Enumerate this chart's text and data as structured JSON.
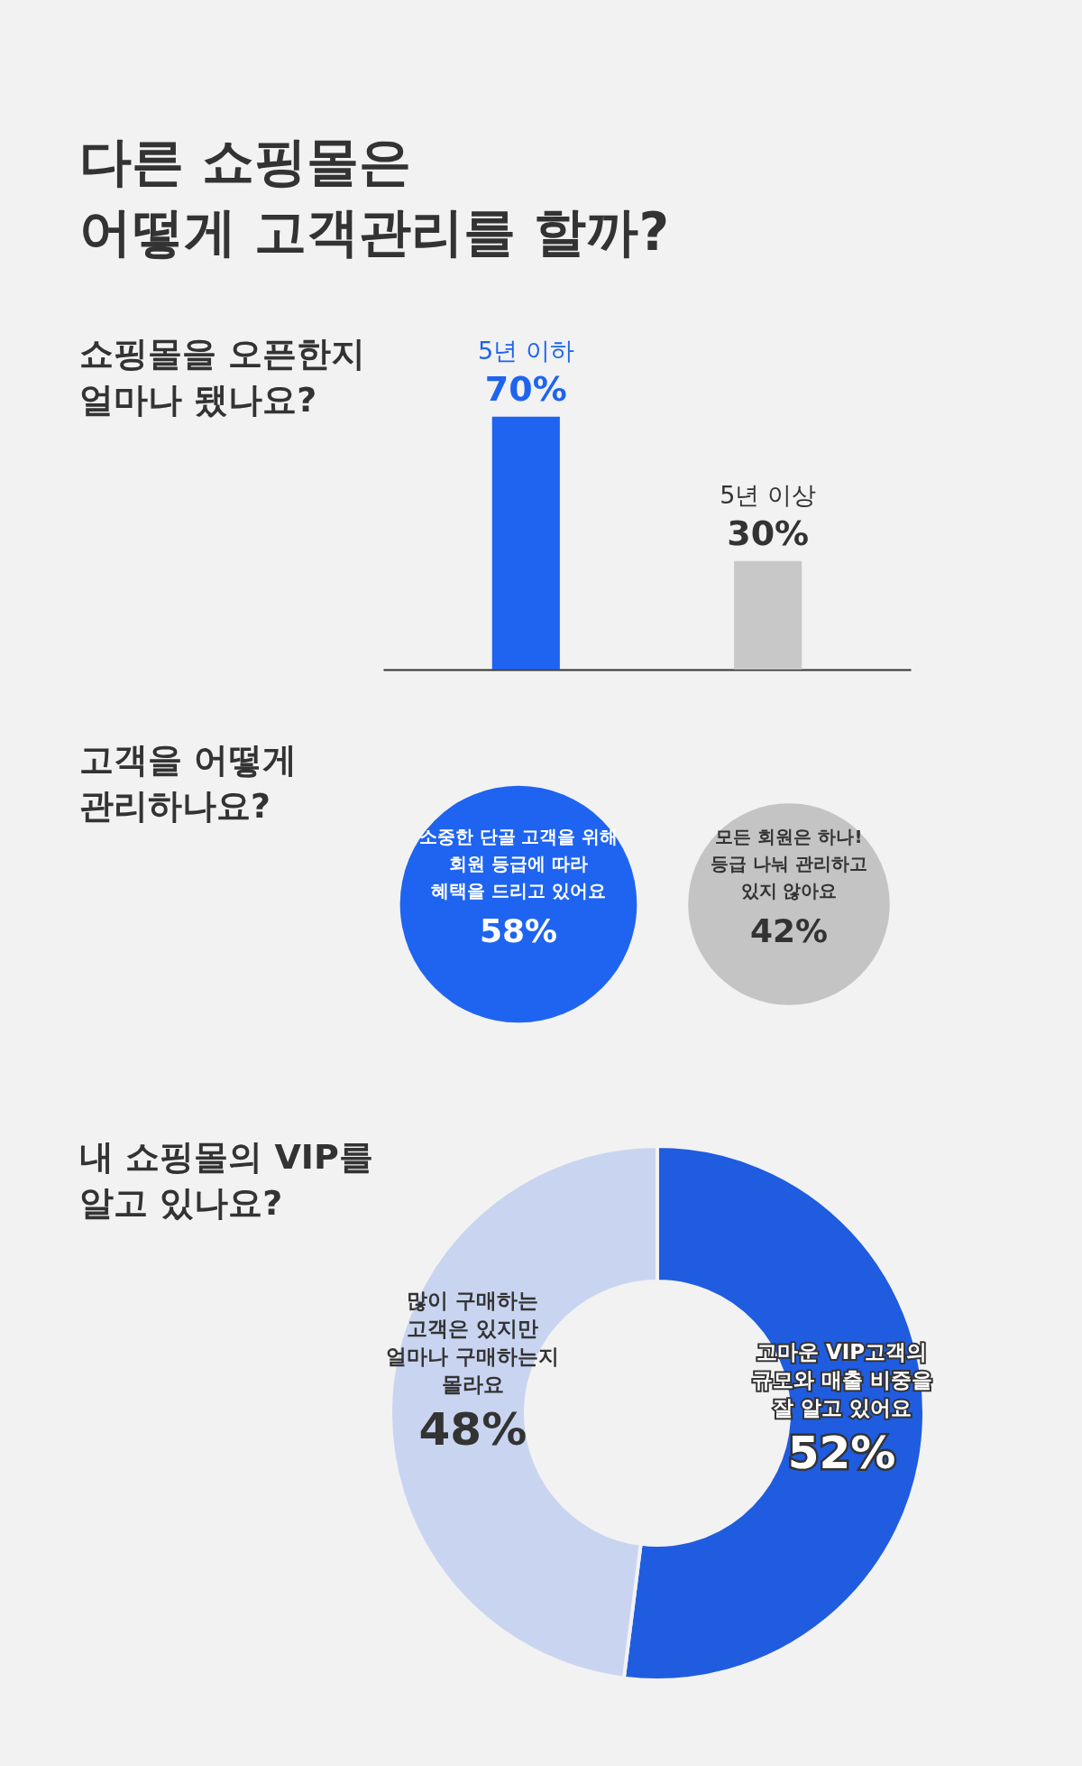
{
  "chart_data": [
    {
      "type": "other",
      "title": "다른 쇼핑몰은\n어떻게 고객관리를 할까?"
    },
    {
      "type": "bar",
      "title": "쇼핑몰을 오픈한지\n얼마나 됐나요?",
      "categories": [
        "5년 이하",
        "5년 이상"
      ],
      "values": [
        70,
        30
      ],
      "value_labels": [
        "70%",
        "30%"
      ],
      "colors": [
        "#1e64f0",
        "#c8c8c8"
      ]
    },
    {
      "type": "other",
      "title": "고객을 어떻게\n관리하나요?",
      "categories": [
        "소중한 단골 고객을 위해\n회원 등급에 따라\n혜택을 드리고 있어요",
        "모든 회원은 하나!\n등급 나눠 관리하고\n있지 않아요"
      ],
      "values": [
        58,
        42
      ],
      "value_labels": [
        "58%",
        "42%"
      ],
      "colors": [
        "#1e64f0",
        "#c4c4c4"
      ]
    },
    {
      "type": "donut",
      "title": "내 쇼핑몰의 VIP를\n알고 있나요?",
      "categories": [
        "고마운 VIP고객의\n규모와 매출 비중을\n잘 알고 있어요",
        "많이 구매하는\n고객은 있지만\n얼마나 구매하는지\n몰라요"
      ],
      "values": [
        52,
        48
      ],
      "value_labels": [
        "52%",
        "48%"
      ],
      "colors": [
        "#1f5ce0",
        "#c9d5f0"
      ]
    }
  ]
}
